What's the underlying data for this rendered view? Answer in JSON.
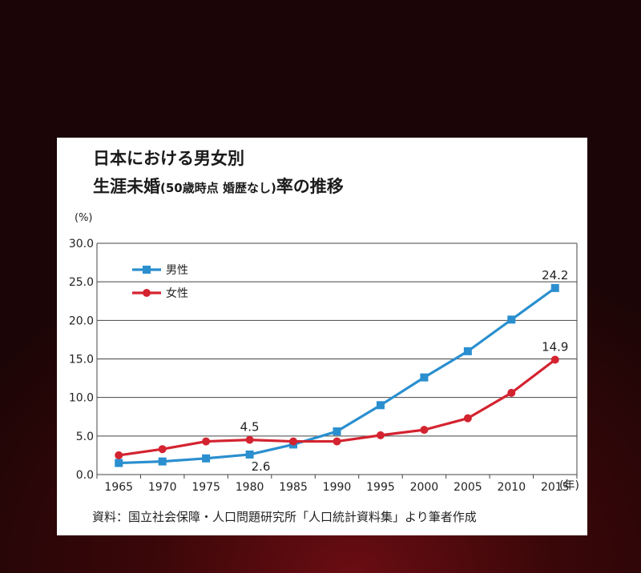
{
  "title": {
    "line1": "日本における男女別",
    "line2_main": "生涯未婚",
    "line2_paren": "(50歳時点 婚歴なし)",
    "line2_end": "率の推移"
  },
  "y_unit": "(%)",
  "x_unit": "(年)",
  "source": "資料：国立社会保障・人口問題研究所「人口統計資料集」より筆者作成",
  "colors": {
    "male": "#2a8fcf",
    "female": "#d42330"
  },
  "chart_data": {
    "type": "line",
    "x": [
      "1965",
      "1970",
      "1975",
      "1980",
      "1985",
      "1990",
      "1995",
      "2000",
      "2005",
      "2010",
      "2015"
    ],
    "ylim": [
      0,
      30
    ],
    "yticks": [
      "0.0",
      "5.0",
      "10.0",
      "15.0",
      "20.0",
      "25.0",
      "30.0"
    ],
    "legend_position": "top-left",
    "series": [
      {
        "name": "男性",
        "marker": "square",
        "values": [
          1.5,
          1.7,
          2.1,
          2.6,
          3.9,
          5.6,
          9.0,
          12.6,
          16.0,
          20.1,
          24.2
        ]
      },
      {
        "name": "女性",
        "marker": "circle",
        "values": [
          2.5,
          3.3,
          4.3,
          4.5,
          4.3,
          4.3,
          5.1,
          5.8,
          7.3,
          10.6,
          14.9
        ]
      }
    ],
    "annotations": [
      {
        "series": 0,
        "index": 10,
        "text": "24.2",
        "pos": "above"
      },
      {
        "series": 1,
        "index": 10,
        "text": "14.9",
        "pos": "above"
      },
      {
        "series": 1,
        "index": 3,
        "text": "4.5",
        "pos": "above"
      },
      {
        "series": 0,
        "index": 3,
        "text": "2.6",
        "pos": "below-right"
      }
    ]
  }
}
